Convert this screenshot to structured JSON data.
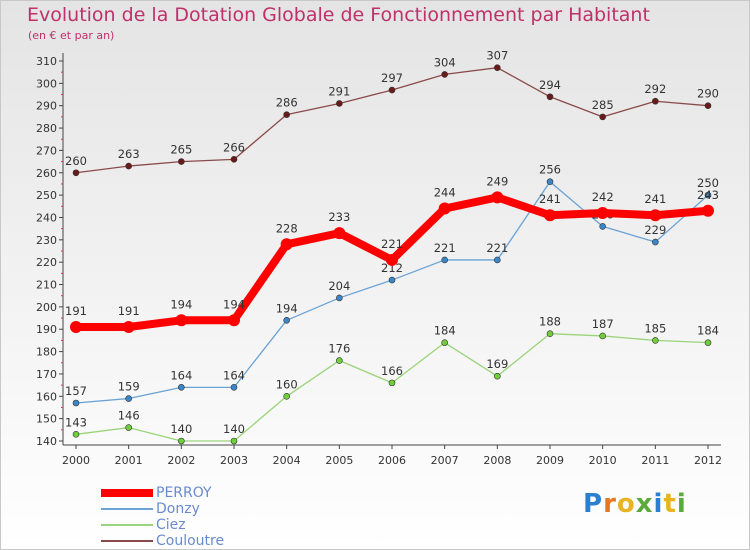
{
  "header": {
    "title": "Evolution de la Dotation Globale de Fonctionnement par Habitant",
    "subtitle": "(en € et par an)"
  },
  "logo": {
    "text": "Proxiti",
    "letters": [
      {
        "ch": "P",
        "color": "#2a7fd0"
      },
      {
        "ch": "r",
        "color": "#e87722"
      },
      {
        "ch": "o",
        "color": "#e8b422"
      },
      {
        "ch": "x",
        "color": "#5aaa3c"
      },
      {
        "ch": "i",
        "color": "#2a7fd0"
      },
      {
        "ch": "t",
        "color": "#e8b422"
      },
      {
        "ch": "i",
        "color": "#5aaa3c"
      }
    ]
  },
  "chart_data": {
    "type": "line",
    "title": "Evolution de la Dotation Globale de Fonctionnement par Habitant",
    "subtitle": "(en € et par an)",
    "xlabel": "",
    "ylabel": "",
    "ylim": [
      140,
      310
    ],
    "ytick_step": 10,
    "grid": false,
    "legend_position": "bottom-left",
    "categories": [
      "2000",
      "2001",
      "2002",
      "2003",
      "2004",
      "2005",
      "2006",
      "2007",
      "2008",
      "2009",
      "2010",
      "2011",
      "2012"
    ],
    "series": [
      {
        "name": "Couloutre",
        "color": "#6b1a1a",
        "line_color": "#8b4a4a",
        "values": [
          260,
          263,
          265,
          266,
          286,
          291,
          297,
          304,
          307,
          294,
          285,
          292,
          290
        ]
      },
      {
        "name": "Ciez",
        "color": "#6fcf3a",
        "line_color": "#9ad47a",
        "values": [
          143,
          146,
          140,
          140,
          160,
          176,
          166,
          184,
          169,
          188,
          187,
          185,
          184
        ]
      },
      {
        "name": "Donzy",
        "color": "#3a86c8",
        "line_color": "#6aa3d5",
        "values": [
          157,
          159,
          164,
          164,
          194,
          204,
          212,
          221,
          221,
          256,
          236,
          229,
          250
        ]
      },
      {
        "name": "PERROY",
        "color": "#ff0000",
        "line_color": "#ff0000",
        "values": [
          191,
          191,
          194,
          194,
          228,
          233,
          221,
          244,
          249,
          241,
          242,
          241,
          243
        ]
      }
    ],
    "legend": [
      "PERROY",
      "Donzy",
      "Ciez",
      "Couloutre"
    ]
  }
}
